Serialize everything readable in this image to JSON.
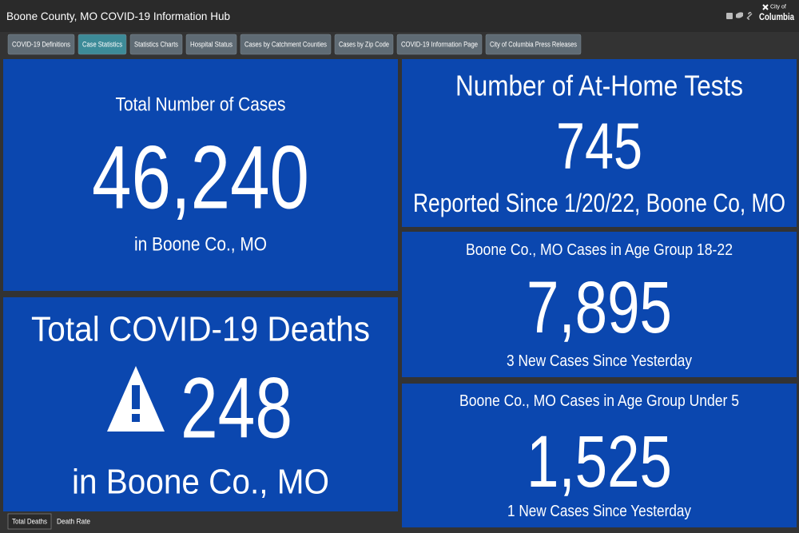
{
  "header": {
    "title": "Boone County, MO COVID-19 Information Hub",
    "logo": [
      "City of",
      "Columbia"
    ]
  },
  "tabs": [
    "COVID-19 Definitions",
    "Case Statistics",
    "Statistics Charts",
    "Hospital Status",
    "Cases by Catchment Counties",
    "Cases by Zip Code",
    "COVID-19 Information Page",
    "City of Columbia Press Releases"
  ],
  "panels": {
    "total_cases": {
      "title": "Total Number of Cases",
      "value": "46,240",
      "subtitle": "in Boone Co., MO"
    },
    "deaths": {
      "title": "Total COVID-19 Deaths",
      "value": "248",
      "subtitle": "in Boone Co., MO"
    },
    "at_home": {
      "title": "Number of At-Home Tests",
      "value": "745",
      "subtitle": "Reported Since 1/20/22, Boone Co, MO"
    },
    "age_18_22": {
      "title": "Boone Co., MO Cases in Age Group 18-22",
      "value": "7,895",
      "subtitle": "3 New Cases Since Yesterday"
    },
    "age_under_5": {
      "title": "Boone Co., MO Cases in Age Group Under 5",
      "value": "1,525",
      "subtitle": "1 New Cases Since Yesterday"
    }
  },
  "bottom_tabs": [
    "Total Deaths",
    "Death Rate"
  ]
}
